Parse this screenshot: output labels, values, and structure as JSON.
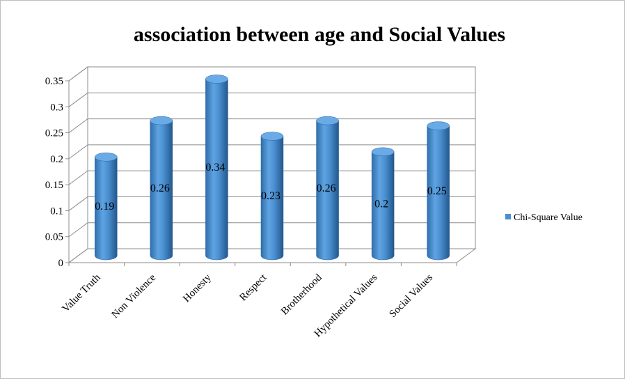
{
  "chart_data": {
    "type": "bar",
    "style": "3d-cylinder",
    "title": "association between age and Social Values",
    "categories": [
      "Value Truth",
      "Non Violence",
      "Honesty",
      "Respect",
      "Brotherhood",
      "Hypothetical Values",
      "Social Values"
    ],
    "series": [
      {
        "name": "Chi-Square Value",
        "values": [
          0.19,
          0.26,
          0.34,
          0.23,
          0.26,
          0.2,
          0.25
        ],
        "color": "#4a8fd0"
      }
    ],
    "data_labels": [
      "0.19",
      "0.26",
      "0.34",
      "0.23",
      "0.26",
      "0.2",
      "0.25"
    ],
    "y_ticks": [
      "0",
      "0.05",
      "0.1",
      "0.15",
      "0.2",
      "0.25",
      "0.3",
      "0.35"
    ],
    "ylim": [
      0,
      0.35
    ],
    "grid": true,
    "legend_position": "right"
  }
}
